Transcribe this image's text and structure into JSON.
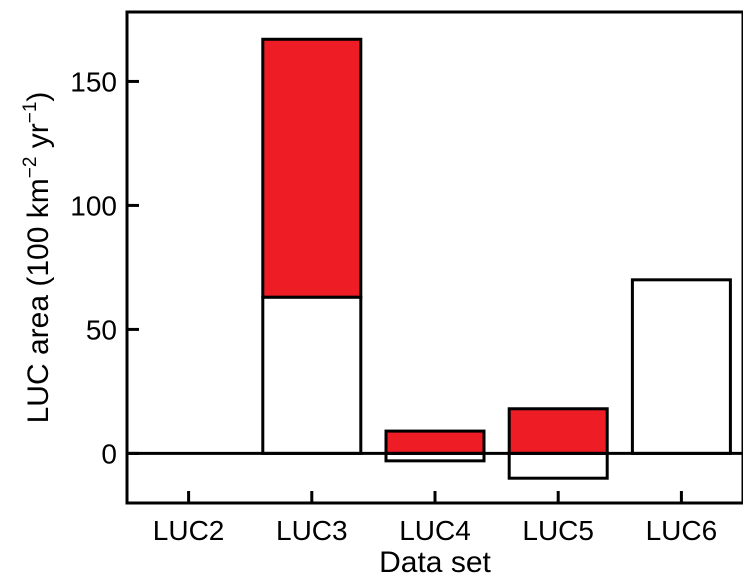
{
  "chart_data": {
    "type": "bar",
    "stacked": true,
    "categories": [
      "LUC2",
      "LUC3",
      "LUC4",
      "LUC5",
      "LUC6"
    ],
    "series": [
      {
        "values": [
          0,
          63,
          -3,
          -10,
          70
        ],
        "color": "#ffffff"
      },
      {
        "values": [
          0,
          104,
          9,
          18,
          0
        ],
        "color": "#ee1c25"
      }
    ],
    "xlabel": "Data set",
    "ylabel": {
      "prefix": "LUC area (100 km",
      "sup1": "−2",
      "middle": " yr",
      "sup2": "−1",
      "suffix": ")"
    },
    "yticks": [
      0,
      50,
      100,
      150
    ],
    "ylim": [
      -20,
      178
    ],
    "grid": false,
    "legend": "none"
  }
}
